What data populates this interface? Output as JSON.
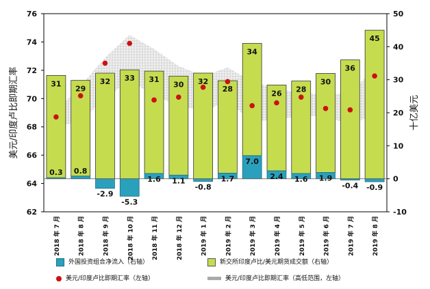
{
  "chart_data": {
    "type": "bar",
    "categories": [
      "2018 年 7 月",
      "2018 年 8 月",
      "2018 年 9 月",
      "2018 年 10 月",
      "2018 年 11 月",
      "2018 年 12 月",
      "2019 年 1 月",
      "2019 年 2 月",
      "2019 年 3 月",
      "2019 年 4 月",
      "2019 年 5 月",
      "2019 年 6 月",
      "2019 年 7 月",
      "2019 年 8 月"
    ],
    "ylabel_left": "美元/印度卢比即期汇率",
    "ylabel_right": "十亿美元",
    "ylim_left": [
      62,
      76
    ],
    "ylim_right": [
      -10,
      50
    ],
    "yticks_left": [
      "62",
      "64",
      "66",
      "68",
      "70",
      "72",
      "74",
      "76"
    ],
    "yticks_right": [
      "-10",
      "0",
      "10",
      "20",
      "30",
      "40",
      "50"
    ],
    "series": [
      {
        "name": "外国投资组合净流入（右轴）",
        "axis": "right",
        "kind": "bar",
        "color": "#2aa0bd",
        "values": [
          0.3,
          0.8,
          -2.9,
          -5.3,
          1.6,
          1.1,
          -0.8,
          1.7,
          7.0,
          2.4,
          1.6,
          1.9,
          -0.4,
          -0.9
        ],
        "labels": [
          "0.3",
          "0.8",
          "-2.9",
          "-5.3",
          "1.6",
          "1.1",
          "-0.8",
          "1.7",
          "7.0",
          "2.4",
          "1.6",
          "1.9",
          "-0.4",
          "-0.9"
        ]
      },
      {
        "name": "新交所印度卢比/美元期货成交额（右轴）",
        "axis": "right",
        "kind": "bar",
        "color": "#c5dc4f",
        "values": [
          31,
          29,
          32,
          33,
          31,
          30,
          32,
          28,
          34,
          26,
          28,
          30,
          36,
          45
        ],
        "labels": [
          "31",
          "29",
          "32",
          "33",
          "31",
          "30",
          "32",
          "28",
          "34",
          "26",
          "28",
          "30",
          "36",
          "45"
        ]
      },
      {
        "name": "美元/印度卢比即期汇率（左轴）",
        "axis": "left",
        "kind": "scatter",
        "color": "#cc1111",
        "values": [
          68.7,
          70.2,
          72.5,
          73.9,
          69.9,
          70.1,
          70.8,
          71.2,
          69.5,
          69.7,
          70.1,
          69.3,
          69.2,
          71.6
        ]
      },
      {
        "name": "美元/印度卢比即期汇率（高低范围，左轴）",
        "axis": "left",
        "kind": "range",
        "color": "#aaaaaa",
        "high": [
          69.1,
          70.9,
          72.9,
          74.5,
          73.5,
          72.3,
          71.6,
          72.2,
          71.2,
          70.7,
          70.4,
          70.3,
          70.4,
          72.1
        ],
        "low": [
          68.0,
          68.4,
          70.0,
          71.3,
          70.2,
          69.5,
          69.1,
          69.8,
          68.4,
          68.5,
          68.8,
          68.7,
          68.2,
          68.8
        ]
      }
    ]
  }
}
